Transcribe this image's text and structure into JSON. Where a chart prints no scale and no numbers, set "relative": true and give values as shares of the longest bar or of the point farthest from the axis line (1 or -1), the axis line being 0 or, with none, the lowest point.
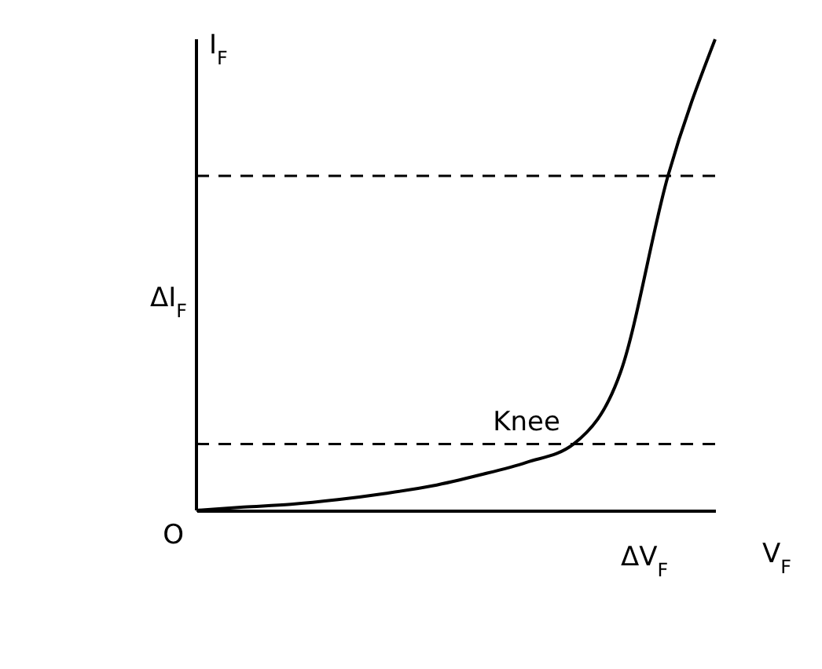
{
  "chart_data": {
    "type": "line",
    "relative": true,
    "xlabel": "V$_{F}$",
    "ylabel": "I$_{F}$",
    "categories": [
      null,
      null,
      null,
      null,
      null,
      null,
      null,
      null,
      null,
      null,
      null,
      null
    ],
    "series": [
      {
        "color": "#000000",
        "values": [
          0,
          0.007,
          0.013,
          0.023,
          0.036,
          0.052,
          0.075,
          0.102,
          0.141,
          0.295,
          0.71,
          1
        ]
      }
    ],
    "ref_lines": [
      {
        "axis": "y",
        "value": 0.141,
        "line_style": "dashed",
        "color": "#000000"
      },
      {
        "axis": "y",
        "value": 0.71,
        "line_style": "dashed",
        "color": "#000000"
      }
    ],
    "annotations": [
      "Knee",
      "ΔI$_{F}$",
      "ΔV$_{F}$",
      "O"
    ],
    "grid": false
  }
}
